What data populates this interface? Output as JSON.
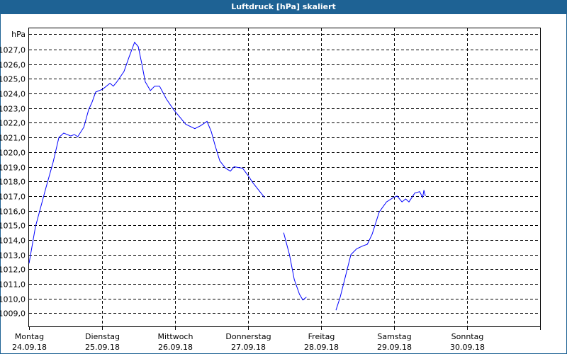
{
  "chart_data": {
    "type": "line",
    "title": "Luftdruck [hPa] skaliert",
    "ylabel": "hPa",
    "xlabel": "",
    "xunit": "hours since Montag 24.09.18 00:00",
    "xlim": [
      0,
      168
    ],
    "ylim": [
      1008.1,
      1028.45
    ],
    "yticks": [
      1009,
      1010,
      1011,
      1012,
      1013,
      1014,
      1015,
      1016,
      1017,
      1018,
      1019,
      1020,
      1021,
      1022,
      1023,
      1024,
      1025,
      1026,
      1027
    ],
    "ytick_labels": [
      "1009,0",
      "1010,0",
      "1011,0",
      "1012,0",
      "1013,0",
      "1014,0",
      "1015,0",
      "1016,0",
      "1017,0",
      "1018,0",
      "1019,0",
      "1020,0",
      "1021,0",
      "1022,0",
      "1023,0",
      "1024,0",
      "1025,0",
      "1026,0",
      "1027,0"
    ],
    "xticks": [
      {
        "h": 0,
        "day": "Montag",
        "date": "24.09.18"
      },
      {
        "h": 24,
        "day": "Dienstag",
        "date": "25.09.18"
      },
      {
        "h": 48,
        "day": "Mittwoch",
        "date": "26.09.18"
      },
      {
        "h": 72,
        "day": "Donnerstag",
        "date": "27.09.18"
      },
      {
        "h": 96,
        "day": "Freitag",
        "date": "28.09.18"
      },
      {
        "h": 120,
        "day": "Samstag",
        "date": "29.09.18"
      },
      {
        "h": 144,
        "day": "Sonntag",
        "date": "30.09.18"
      }
    ],
    "grid": true,
    "line_color": "#0000ff",
    "series": [
      {
        "name": "Luftdruck",
        "segments": [
          [
            [
              0,
              1012.4
            ],
            [
              2.1,
              1014.9
            ],
            [
              5.6,
              1017.6
            ],
            [
              7.9,
              1019.3
            ],
            [
              9.8,
              1021.0
            ],
            [
              11.4,
              1021.3
            ],
            [
              13.7,
              1021.1
            ],
            [
              14.9,
              1021.2
            ],
            [
              16,
              1021.05
            ],
            [
              18,
              1021.7
            ],
            [
              19.6,
              1022.9
            ],
            [
              20.7,
              1023.4
            ],
            [
              21.9,
              1024.1
            ],
            [
              24.2,
              1024.3
            ],
            [
              26.6,
              1024.7
            ],
            [
              27.7,
              1024.5
            ],
            [
              28.9,
              1024.8
            ],
            [
              31.2,
              1025.5
            ],
            [
              32.9,
              1026.5
            ],
            [
              34.7,
              1027.5
            ],
            [
              35.9,
              1027.2
            ],
            [
              37.1,
              1026.0
            ],
            [
              38.2,
              1024.8
            ],
            [
              39.9,
              1024.2
            ],
            [
              41.3,
              1024.5
            ],
            [
              42.9,
              1024.5
            ],
            [
              45.2,
              1023.6
            ],
            [
              47.5,
              1022.9
            ],
            [
              49.9,
              1022.3
            ],
            [
              51.5,
              1021.9
            ],
            [
              54.5,
              1021.6
            ],
            [
              56.4,
              1021.8
            ],
            [
              58.5,
              1022.1
            ],
            [
              59.9,
              1021.4
            ],
            [
              61.1,
              1020.5
            ],
            [
              62.7,
              1019.4
            ],
            [
              64.6,
              1018.9
            ],
            [
              66.2,
              1018.7
            ],
            [
              67.4,
              1019.0
            ],
            [
              70.2,
              1018.9
            ],
            [
              72,
              1018.4
            ],
            [
              73.6,
              1017.9
            ],
            [
              75.5,
              1017.4
            ],
            [
              77.4,
              1016.9
            ]
          ],
          [
            [
              83.7,
              1014.5
            ],
            [
              85.6,
              1013.0
            ],
            [
              87.2,
              1011.3
            ],
            [
              88.9,
              1010.3
            ],
            [
              90,
              1009.9
            ],
            [
              91.2,
              1010.1
            ]
          ],
          [
            [
              100.9,
              1009.2
            ],
            [
              102.3,
              1010.1
            ],
            [
              104,
              1011.5
            ],
            [
              105.8,
              1013.0
            ],
            [
              107.7,
              1013.4
            ],
            [
              109.8,
              1013.6
            ],
            [
              111.2,
              1013.7
            ],
            [
              112.8,
              1014.4
            ],
            [
              115.1,
              1015.9
            ],
            [
              117.5,
              1016.6
            ],
            [
              119.8,
              1016.9
            ],
            [
              121,
              1017.0
            ],
            [
              122.6,
              1016.6
            ],
            [
              123.8,
              1016.8
            ],
            [
              124.9,
              1016.6
            ],
            [
              126.8,
              1017.2
            ],
            [
              128.4,
              1017.3
            ],
            [
              129.4,
              1016.9
            ],
            [
              129.8,
              1017.4
            ],
            [
              130.3,
              1017.0
            ]
          ]
        ]
      }
    ]
  }
}
